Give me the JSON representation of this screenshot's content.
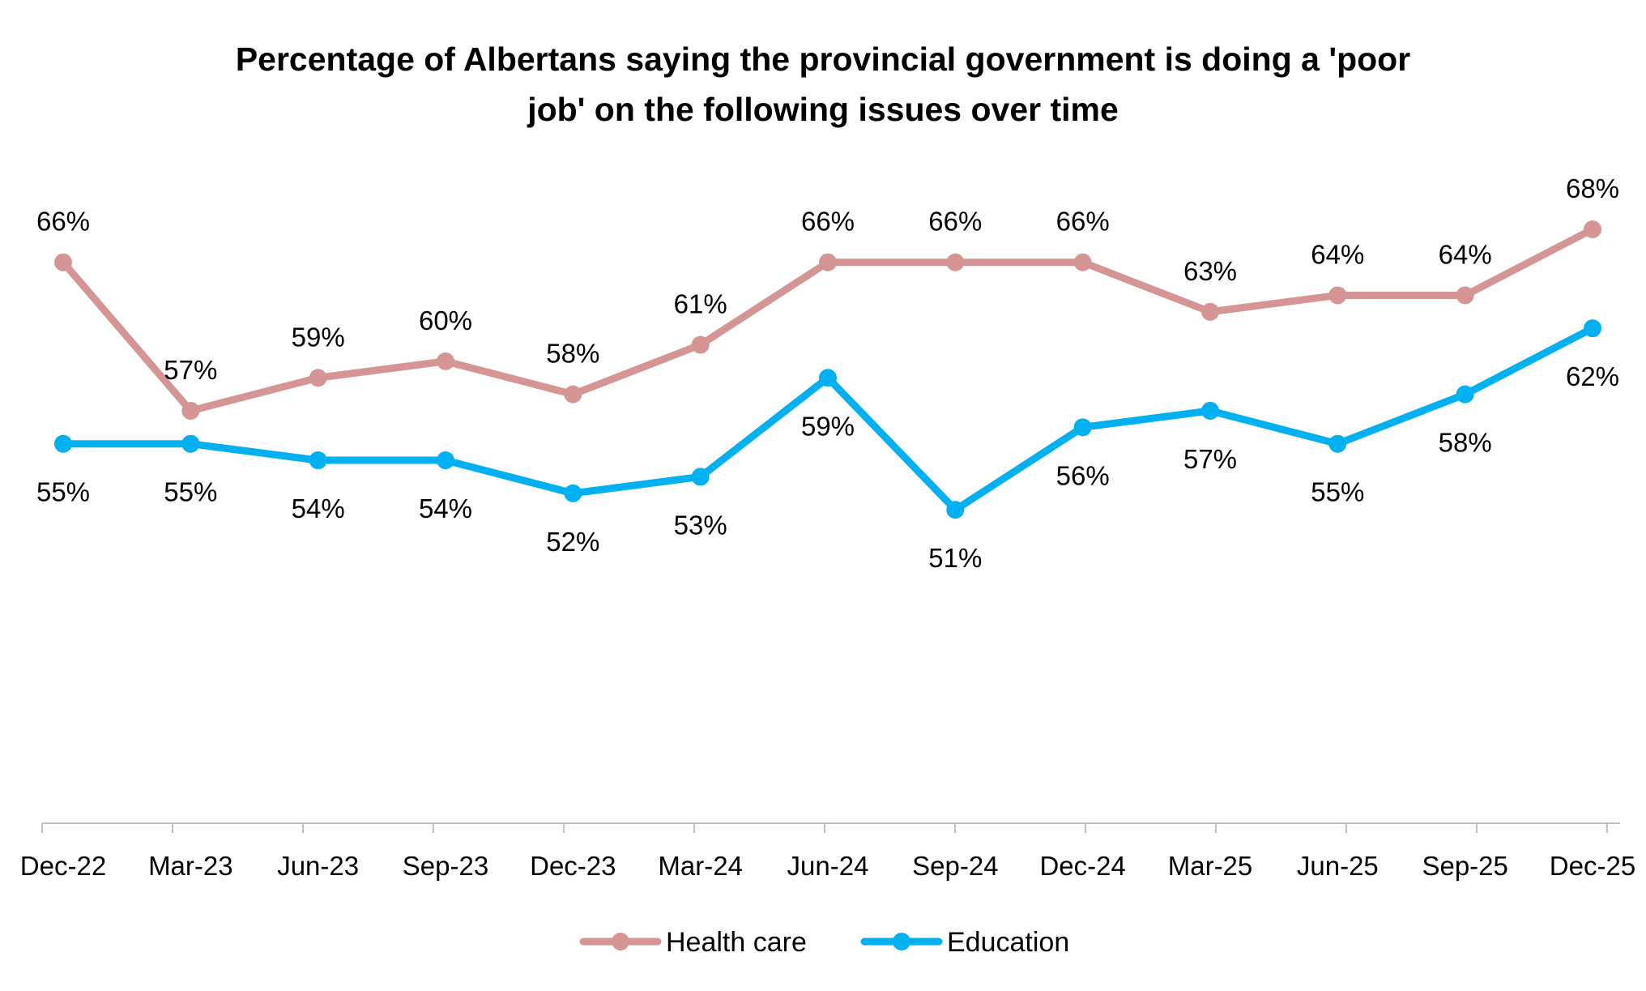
{
  "chart_data": {
    "type": "line",
    "title_lines": [
      "Percentage of Albertans saying the provincial government is doing a 'poor",
      "job' on the following issues over time"
    ],
    "categories": [
      "Dec-22",
      "Mar-23",
      "Jun-23",
      "Sep-23",
      "Dec-23",
      "Mar-24",
      "Jun-24",
      "Sep-24",
      "Dec-24",
      "Mar-25",
      "Jun-25",
      "Sep-25",
      "Dec-25"
    ],
    "series": [
      {
        "name": "Health care",
        "color": "#D69595",
        "values": [
          66,
          57,
          59,
          60,
          58,
          61,
          66,
          66,
          66,
          63,
          64,
          64,
          68
        ],
        "labels": [
          "66%",
          "57%",
          "59%",
          "60%",
          "58%",
          "61%",
          "66%",
          "66%",
          "66%",
          "63%",
          "64%",
          "64%",
          "68%"
        ],
        "label_position": "above"
      },
      {
        "name": "Education",
        "color": "#00B0F0",
        "values": [
          55,
          55,
          54,
          54,
          52,
          53,
          59,
          51,
          56,
          57,
          55,
          58,
          62
        ],
        "labels": [
          "55%",
          "55%",
          "54%",
          "54%",
          "52%",
          "53%",
          "59%",
          "51%",
          "56%",
          "57%",
          "55%",
          "58%",
          "62%"
        ],
        "label_position": "below"
      }
    ],
    "ylim": [
      32,
      68
    ],
    "grid": false,
    "y_axis_visible": false,
    "legend": "bottom-center"
  }
}
